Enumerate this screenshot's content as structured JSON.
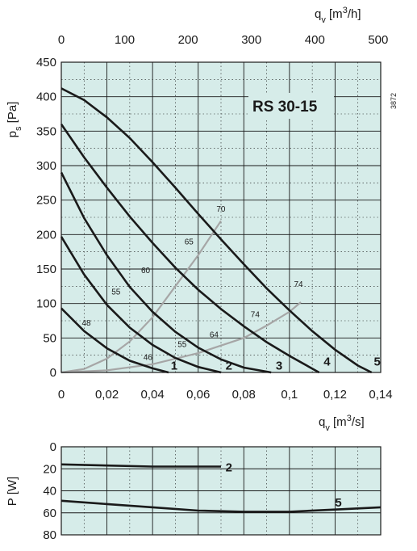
{
  "chart_data": [
    {
      "type": "line",
      "model_label": "RS 30-15",
      "code_label": "3872",
      "colors": {
        "background": "#d6ece9",
        "fan_curve": "#1a1a1a",
        "efficiency_curve": "#a6a6a6",
        "grid": "#1a1a1a"
      },
      "ylabel": {
        "main": "p",
        "sub": "s",
        "unit": " [Pa]"
      },
      "xlabel_bottom": {
        "main": "q",
        "sub": "v",
        "unit_pre": " [m",
        "unit_sup": "3",
        "unit_post": "/s]"
      },
      "xlabel_top": {
        "main": "q",
        "sub": "v",
        "unit_pre": " [m",
        "unit_sup": "3",
        "unit_post": "/h]"
      },
      "xlim": [
        0,
        0.14
      ],
      "ylim": [
        0,
        450
      ],
      "x_ticks": [
        0,
        0.02,
        0.04,
        0.06,
        0.08,
        0.1,
        0.12,
        0.14
      ],
      "x_tick_labels": [
        "0",
        "0,02",
        "0,04",
        "0,06",
        "0,08",
        "0,1",
        "0,12",
        "0,14"
      ],
      "y_ticks": [
        0,
        50,
        100,
        150,
        200,
        250,
        300,
        350,
        400,
        450
      ],
      "y_tick_labels": [
        "0",
        "50",
        "100",
        "150",
        "200",
        "250",
        "300",
        "350",
        "400",
        "450"
      ],
      "x_top_ticks": [
        0,
        100,
        200,
        300,
        400,
        500
      ],
      "x_top_tick_labels": [
        "0",
        "100",
        "200",
        "300",
        "400",
        "500"
      ],
      "x_top_max": 504,
      "series": [
        {
          "name": "1",
          "points": [
            [
              0,
              93
            ],
            [
              0.01,
              60
            ],
            [
              0.02,
              35
            ],
            [
              0.03,
              17
            ],
            [
              0.04,
              6
            ],
            [
              0.047,
              0
            ]
          ],
          "label_at": [
            0.048,
            4
          ]
        },
        {
          "name": "2",
          "points": [
            [
              0,
              197
            ],
            [
              0.01,
              142
            ],
            [
              0.02,
              98
            ],
            [
              0.03,
              65
            ],
            [
              0.04,
              40
            ],
            [
              0.05,
              21
            ],
            [
              0.06,
              8
            ],
            [
              0.07,
              0
            ]
          ],
          "label_at": [
            0.072,
            4
          ]
        },
        {
          "name": "3",
          "points": [
            [
              0,
              290
            ],
            [
              0.01,
              224
            ],
            [
              0.02,
              170
            ],
            [
              0.03,
              124
            ],
            [
              0.04,
              88
            ],
            [
              0.05,
              59
            ],
            [
              0.06,
              36
            ],
            [
              0.07,
              19
            ],
            [
              0.08,
              7
            ],
            [
              0.092,
              0
            ]
          ],
          "label_at": [
            0.094,
            4
          ]
        },
        {
          "name": "4",
          "points": [
            [
              0,
              360
            ],
            [
              0.01,
              312
            ],
            [
              0.02,
              268
            ],
            [
              0.03,
              226
            ],
            [
              0.04,
              188
            ],
            [
              0.05,
              152
            ],
            [
              0.06,
              120
            ],
            [
              0.07,
              92
            ],
            [
              0.08,
              67
            ],
            [
              0.09,
              44
            ],
            [
              0.1,
              24
            ],
            [
              0.113,
              0
            ]
          ],
          "label_at": [
            0.115,
            10
          ]
        },
        {
          "name": "5",
          "points": [
            [
              0,
              412
            ],
            [
              0.01,
              395
            ],
            [
              0.02,
              370
            ],
            [
              0.03,
              340
            ],
            [
              0.04,
              305
            ],
            [
              0.05,
              268
            ],
            [
              0.06,
              230
            ],
            [
              0.07,
              193
            ],
            [
              0.08,
              157
            ],
            [
              0.09,
              122
            ],
            [
              0.1,
              90
            ],
            [
              0.11,
              60
            ],
            [
              0.12,
              33
            ],
            [
              0.13,
              10
            ],
            [
              0.136,
              0
            ]
          ],
          "label_at": [
            0.137,
            10
          ]
        }
      ],
      "efficiency_curves": [
        {
          "points": [
            [
              0,
              0
            ],
            [
              0.01,
              5
            ],
            [
              0.02,
              20
            ],
            [
              0.03,
              45
            ],
            [
              0.04,
              80
            ],
            [
              0.05,
              125
            ],
            [
              0.06,
              170
            ],
            [
              0.07,
              220
            ]
          ]
        },
        {
          "points": [
            [
              0,
              0
            ],
            [
              0.02,
              3
            ],
            [
              0.04,
              12
            ],
            [
              0.06,
              28
            ],
            [
              0.08,
              50
            ],
            [
              0.09,
              68
            ],
            [
              0.1,
              88
            ],
            [
              0.105,
              102
            ]
          ]
        }
      ],
      "annotations": [
        {
          "text": "48",
          "x": 0.009,
          "y": 68
        },
        {
          "text": "55",
          "x": 0.022,
          "y": 113
        },
        {
          "text": "60",
          "x": 0.035,
          "y": 144
        },
        {
          "text": "65",
          "x": 0.054,
          "y": 186
        },
        {
          "text": "70",
          "x": 0.068,
          "y": 233
        },
        {
          "text": "74",
          "x": 0.102,
          "y": 124
        },
        {
          "text": "74",
          "x": 0.083,
          "y": 80
        },
        {
          "text": "64",
          "x": 0.065,
          "y": 51
        },
        {
          "text": "55",
          "x": 0.051,
          "y": 37
        },
        {
          "text": "46",
          "x": 0.036,
          "y": 18
        }
      ]
    },
    {
      "type": "line",
      "ylabel": "P [W]",
      "xlim": [
        0,
        0.14
      ],
      "ylim": [
        0,
        80
      ],
      "y_ticks": [
        0,
        20,
        40,
        60,
        80
      ],
      "y_tick_labels": [
        "0",
        "20",
        "40",
        "60",
        "80"
      ],
      "series": [
        {
          "name": "2",
          "points": [
            [
              0,
              16
            ],
            [
              0.02,
              17
            ],
            [
              0.04,
              18
            ],
            [
              0.06,
              18
            ],
            [
              0.07,
              18
            ]
          ],
          "label_at": [
            0.072,
            18
          ]
        },
        {
          "name": "5",
          "points": [
            [
              0,
              49
            ],
            [
              0.02,
              52
            ],
            [
              0.04,
              55
            ],
            [
              0.06,
              58
            ],
            [
              0.08,
              59
            ],
            [
              0.1,
              59
            ],
            [
              0.12,
              57
            ],
            [
              0.14,
              55
            ]
          ],
          "label_at": [
            0.12,
            50
          ]
        }
      ]
    }
  ]
}
